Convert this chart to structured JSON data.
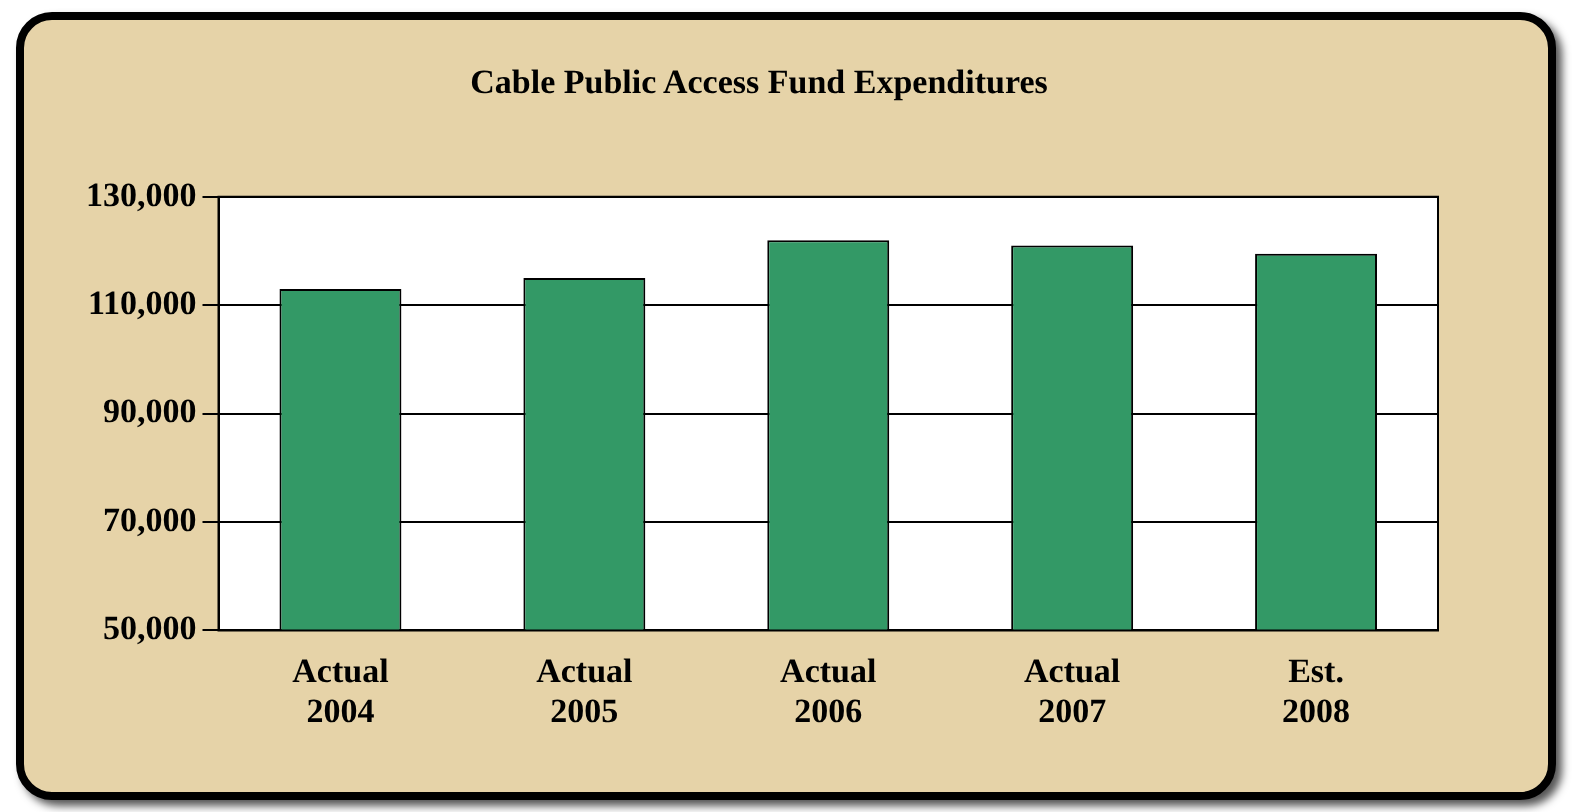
{
  "chart_data": {
    "type": "bar",
    "title": "Cable Public Access Fund Expenditures",
    "categories": [
      "Actual\n2004",
      "Actual\n2005",
      "Actual\n2006",
      "Actual\n2007",
      "Est.\n2008"
    ],
    "values": [
      113000,
      115000,
      122000,
      121000,
      119500
    ],
    "color": "#339966",
    "ylim": [
      50000,
      130000
    ],
    "yticks": [
      {
        "value": 50000,
        "label": "50,000"
      },
      {
        "value": 70000,
        "label": "70,000"
      },
      {
        "value": 90000,
        "label": "90,000"
      },
      {
        "value": 110000,
        "label": "110,000"
      },
      {
        "value": 130000,
        "label": "130,000"
      }
    ],
    "grid": "y"
  }
}
